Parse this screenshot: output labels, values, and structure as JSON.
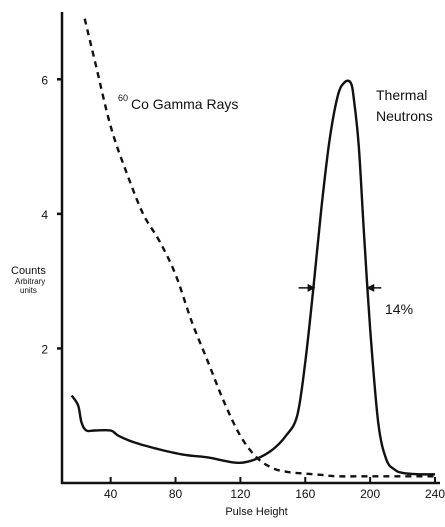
{
  "chart_data": {
    "type": "line",
    "title": "",
    "xlabel": "Pulse Height",
    "ylabel": "Counts",
    "ylabel_sub": [
      "Arbitrary",
      "units"
    ],
    "xlim": [
      10,
      240
    ],
    "ylim": [
      0,
      7
    ],
    "xticks": [
      40,
      80,
      120,
      160,
      200,
      240
    ],
    "yticks": [
      2,
      4,
      6
    ],
    "grid": false,
    "legend": "none",
    "series": [
      {
        "name": "Thermal Neutrons",
        "style": "solid",
        "x": [
          16,
          20,
          22,
          25,
          30,
          40,
          45,
          55,
          70,
          85,
          100,
          110,
          120,
          130,
          140,
          148,
          155,
          160,
          165,
          170,
          175,
          180,
          184,
          188,
          190,
          193,
          196,
          200,
          205,
          210,
          215,
          220,
          230,
          240
        ],
        "y": [
          1.3,
          1.15,
          0.9,
          0.78,
          0.78,
          0.78,
          0.7,
          0.6,
          0.5,
          0.42,
          0.38,
          0.33,
          0.3,
          0.36,
          0.5,
          0.7,
          1.0,
          1.8,
          2.9,
          4.1,
          5.1,
          5.75,
          5.95,
          5.95,
          5.7,
          5.0,
          3.8,
          2.3,
          0.9,
          0.35,
          0.2,
          0.15,
          0.13,
          0.13
        ]
      },
      {
        "name": "Co Gamma Rays",
        "style": "dashed",
        "x": [
          24,
          30,
          40,
          50,
          60,
          70,
          80,
          90,
          100,
          110,
          120,
          130,
          140,
          150,
          160,
          170,
          180,
          200,
          220,
          240
        ],
        "y": [
          6.9,
          6.3,
          5.3,
          4.6,
          4.0,
          3.6,
          3.1,
          2.4,
          1.8,
          1.2,
          0.7,
          0.38,
          0.22,
          0.16,
          0.14,
          0.12,
          0.1,
          0.1,
          0.1,
          0.1
        ]
      }
    ],
    "annotations": {
      "gamma_sup": "60",
      "gamma_label": "Co Gamma Rays",
      "neutron_label": [
        "Thermal",
        "Neutrons"
      ],
      "fwhm_label": "14%"
    },
    "fwhm_markers": {
      "y": 2.9,
      "x_left": 167,
      "x_right": 197
    }
  }
}
